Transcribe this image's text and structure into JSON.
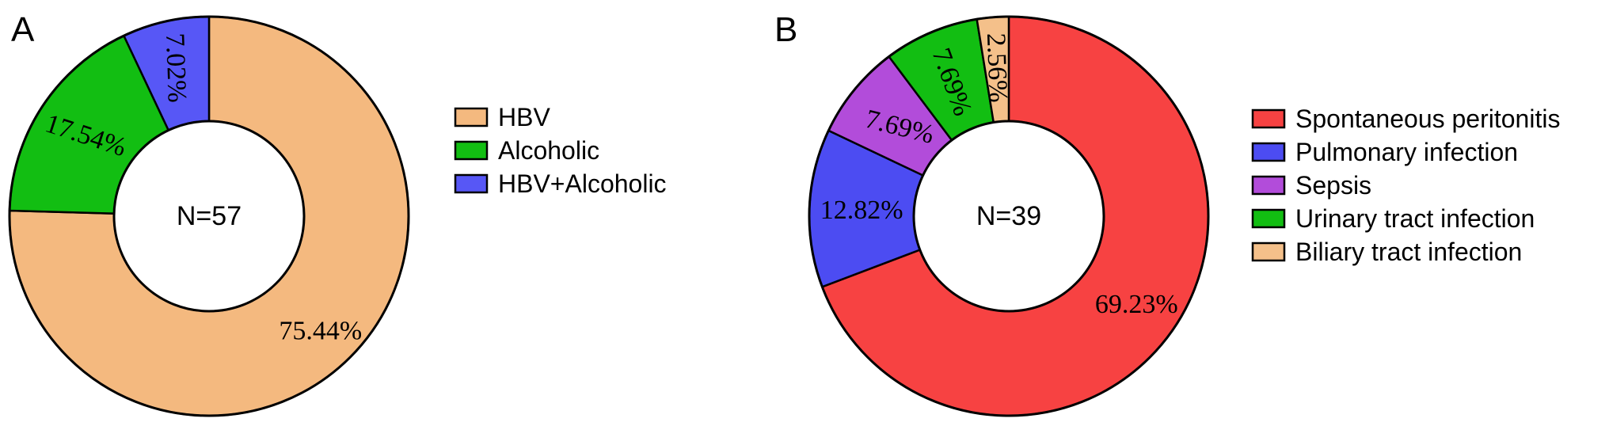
{
  "chart_data": [
    {
      "type": "pie",
      "panel": "A",
      "center_label": "N=57",
      "slices": [
        {
          "name": "HBV",
          "value": 75.44,
          "label": "75.44%",
          "color": "#F4B97F"
        },
        {
          "name": "Alcoholic",
          "value": 17.54,
          "label": "17.54%",
          "color": "#12BE12"
        },
        {
          "name": "HBV+Alcoholic",
          "value": 7.02,
          "label": "7.02%",
          "color": "#5757F6"
        }
      ],
      "legend": [
        "HBV",
        "Alcoholic",
        "HBV+Alcoholic"
      ]
    },
    {
      "type": "pie",
      "panel": "B",
      "center_label": "N=39",
      "slices": [
        {
          "name": "Spontaneous peritonitis",
          "value": 69.23,
          "label": "69.23%",
          "color": "#F74242"
        },
        {
          "name": "Pulmonary infection",
          "value": 12.82,
          "label": "12.82%",
          "color": "#4C4CF2"
        },
        {
          "name": "Sepsis",
          "value": 7.69,
          "label": "7.69%",
          "color": "#B24CDA"
        },
        {
          "name": "Urinary tract infection",
          "value": 7.69,
          "label": "7.69%",
          "color": "#12BE12"
        },
        {
          "name": "Biliary tract infection",
          "value": 2.56,
          "label": "2.56%",
          "color": "#F4C08A"
        }
      ],
      "legend": [
        "Spontaneous peritonitis",
        "Pulmonary infection",
        "Sepsis",
        "Urinary tract infection",
        "Biliary tract infection"
      ]
    }
  ]
}
